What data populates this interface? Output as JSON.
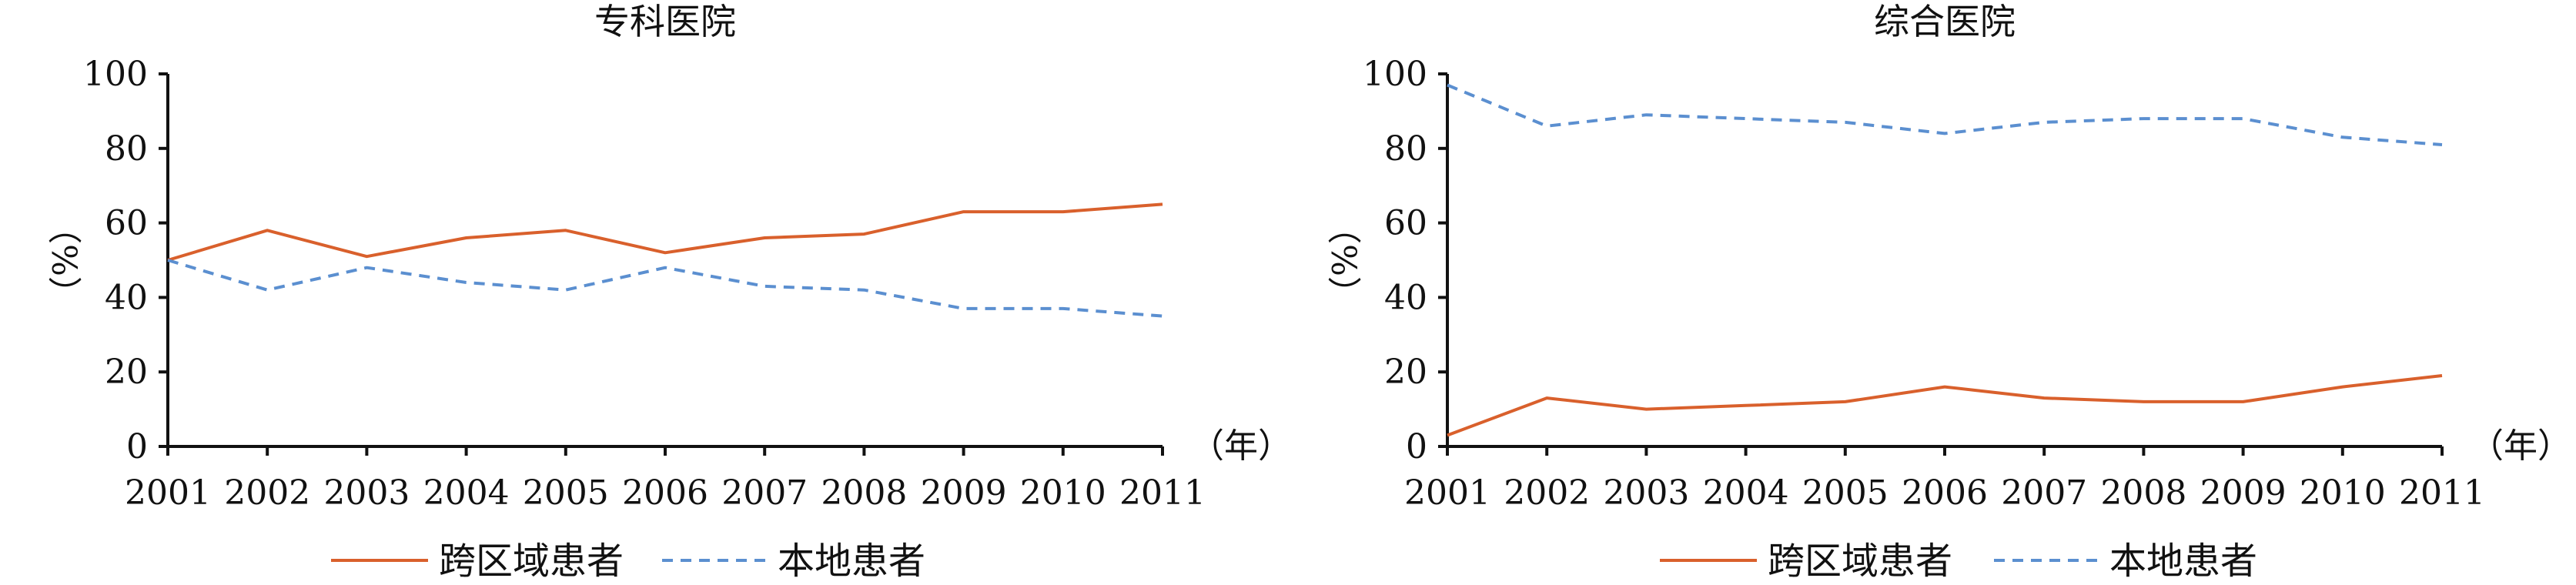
{
  "legend": {
    "series_cross": "跨区域患者",
    "series_local": "本地患者"
  },
  "colors": {
    "cross": "#d9602c",
    "local": "#5b8fd0"
  },
  "chart_data": [
    {
      "type": "line",
      "title": "专科医院",
      "ylabel": "（%）",
      "xlabel": "（年）",
      "ylim": [
        0,
        100
      ],
      "yticks": [
        0,
        20,
        40,
        60,
        80,
        100
      ],
      "x": [
        "2001",
        "2002",
        "2003",
        "2004",
        "2005",
        "2006",
        "2007",
        "2008",
        "2009",
        "2010",
        "2011"
      ],
      "series": [
        {
          "name": "跨区域患者",
          "style": "solid",
          "values": [
            50,
            58,
            51,
            56,
            58,
            52,
            56,
            57,
            63,
            63,
            65
          ]
        },
        {
          "name": "本地患者",
          "style": "dashed",
          "values": [
            50,
            42,
            48,
            44,
            42,
            48,
            43,
            42,
            37,
            37,
            35
          ]
        }
      ]
    },
    {
      "type": "line",
      "title": "综合医院",
      "ylabel": "（%）",
      "xlabel": "（年）",
      "ylim": [
        0,
        100
      ],
      "yticks": [
        0,
        20,
        40,
        60,
        80,
        100
      ],
      "x": [
        "2001",
        "2002",
        "2003",
        "2004",
        "2005",
        "2006",
        "2007",
        "2008",
        "2009",
        "2010",
        "2011"
      ],
      "series": [
        {
          "name": "跨区域患者",
          "style": "solid",
          "values": [
            3,
            13,
            10,
            11,
            12,
            16,
            13,
            12,
            12,
            16,
            19
          ]
        },
        {
          "name": "本地患者",
          "style": "dashed",
          "values": [
            97,
            86,
            89,
            88,
            87,
            84,
            87,
            88,
            88,
            83,
            81
          ]
        }
      ]
    }
  ]
}
